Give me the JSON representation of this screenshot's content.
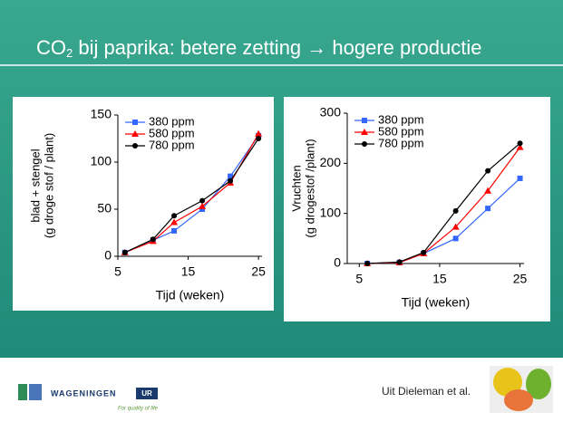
{
  "slide": {
    "title": [
      "CO",
      "2",
      " bij paprika: betere zetting → hogere productie"
    ],
    "logo": "WAGENINGEN",
    "logo_ur": "UR",
    "tagline": "For quality of life",
    "source": "Uit  Dieleman et al."
  },
  "chart_data": [
    {
      "type": "line",
      "ylabel": [
        "blad + stengel",
        "(g droge stof / plant)"
      ],
      "xlabel": "Tijd (weken)",
      "x": [
        6,
        10,
        13,
        17,
        21,
        25
      ],
      "xlim": [
        5,
        25.5
      ],
      "xticks": [
        5,
        15,
        25
      ],
      "ylim": [
        0,
        150
      ],
      "yticks": [
        0,
        50,
        100,
        150
      ],
      "legend": "upper left",
      "series": [
        {
          "name": "380 ppm",
          "color": "#3366ff",
          "marker": "square",
          "values": [
            4,
            17,
            27,
            50,
            85,
            128
          ]
        },
        {
          "name": "580 ppm",
          "color": "#ff0000",
          "marker": "triangle",
          "values": [
            4,
            16,
            36,
            53,
            78,
            130
          ]
        },
        {
          "name": "780 ppm",
          "color": "#000000",
          "marker": "circle",
          "values": [
            4,
            18,
            43,
            59,
            80,
            125
          ]
        }
      ]
    },
    {
      "type": "line",
      "ylabel": [
        "Vruchten",
        "(g drogestof /plant)"
      ],
      "xlabel": "Tijd (weken)",
      "x": [
        6,
        10,
        13,
        17,
        21,
        25
      ],
      "xlim": [
        3.5,
        25.5
      ],
      "xticks": [
        5,
        15,
        25
      ],
      "ylim": [
        0,
        300
      ],
      "yticks": [
        0,
        100,
        200,
        300
      ],
      "legend": "upper left",
      "series": [
        {
          "name": "380 ppm",
          "color": "#3366ff",
          "marker": "square",
          "values": [
            0,
            2,
            20,
            50,
            110,
            170
          ]
        },
        {
          "name": "580 ppm",
          "color": "#ff0000",
          "marker": "triangle",
          "values": [
            0,
            2,
            20,
            73,
            145,
            232
          ]
        },
        {
          "name": "780 ppm",
          "color": "#000000",
          "marker": "circle",
          "values": [
            0,
            3,
            22,
            105,
            185,
            240
          ]
        }
      ]
    }
  ]
}
